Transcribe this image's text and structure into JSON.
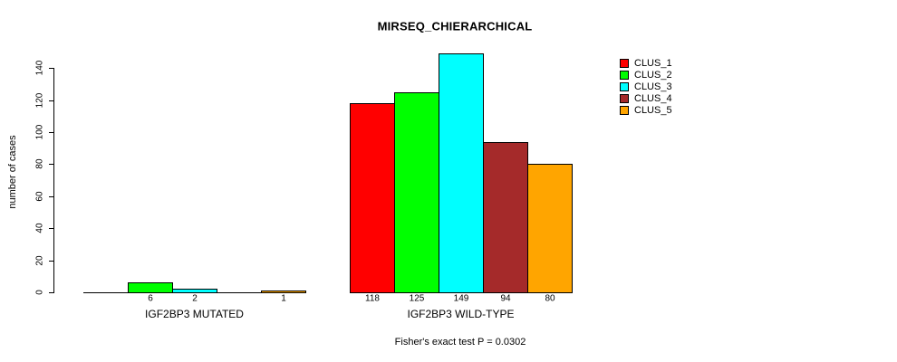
{
  "chart_data": {
    "type": "bar",
    "title": "MIRSEQ_CHIERARCHICAL",
    "ylabel": "number of cases",
    "xlabel": "",
    "categories": [
      "IGF2BP3 MUTATED",
      "IGF2BP3 WILD-TYPE"
    ],
    "series": [
      {
        "name": "CLUS_1",
        "color": "#ff0000",
        "values": [
          0,
          118
        ]
      },
      {
        "name": "CLUS_2",
        "color": "#00ff00",
        "values": [
          6,
          125
        ]
      },
      {
        "name": "CLUS_3",
        "color": "#00ffff",
        "values": [
          2,
          149
        ]
      },
      {
        "name": "CLUS_4",
        "color": "#a52a2a",
        "values": [
          0,
          94
        ]
      },
      {
        "name": "CLUS_5",
        "color": "#ffa500",
        "values": [
          1,
          80
        ]
      }
    ],
    "value_labels_visible": [
      "6",
      "2",
      "1",
      "118",
      "125",
      "149",
      "94",
      "80"
    ],
    "yticks": [
      0,
      20,
      40,
      60,
      80,
      100,
      120,
      140
    ],
    "ylim": [
      0,
      155
    ],
    "grid": false,
    "bar_border_color": "#000000",
    "legend_position": "top-right",
    "annotation": "Fisher's exact test P = 0.0302"
  }
}
